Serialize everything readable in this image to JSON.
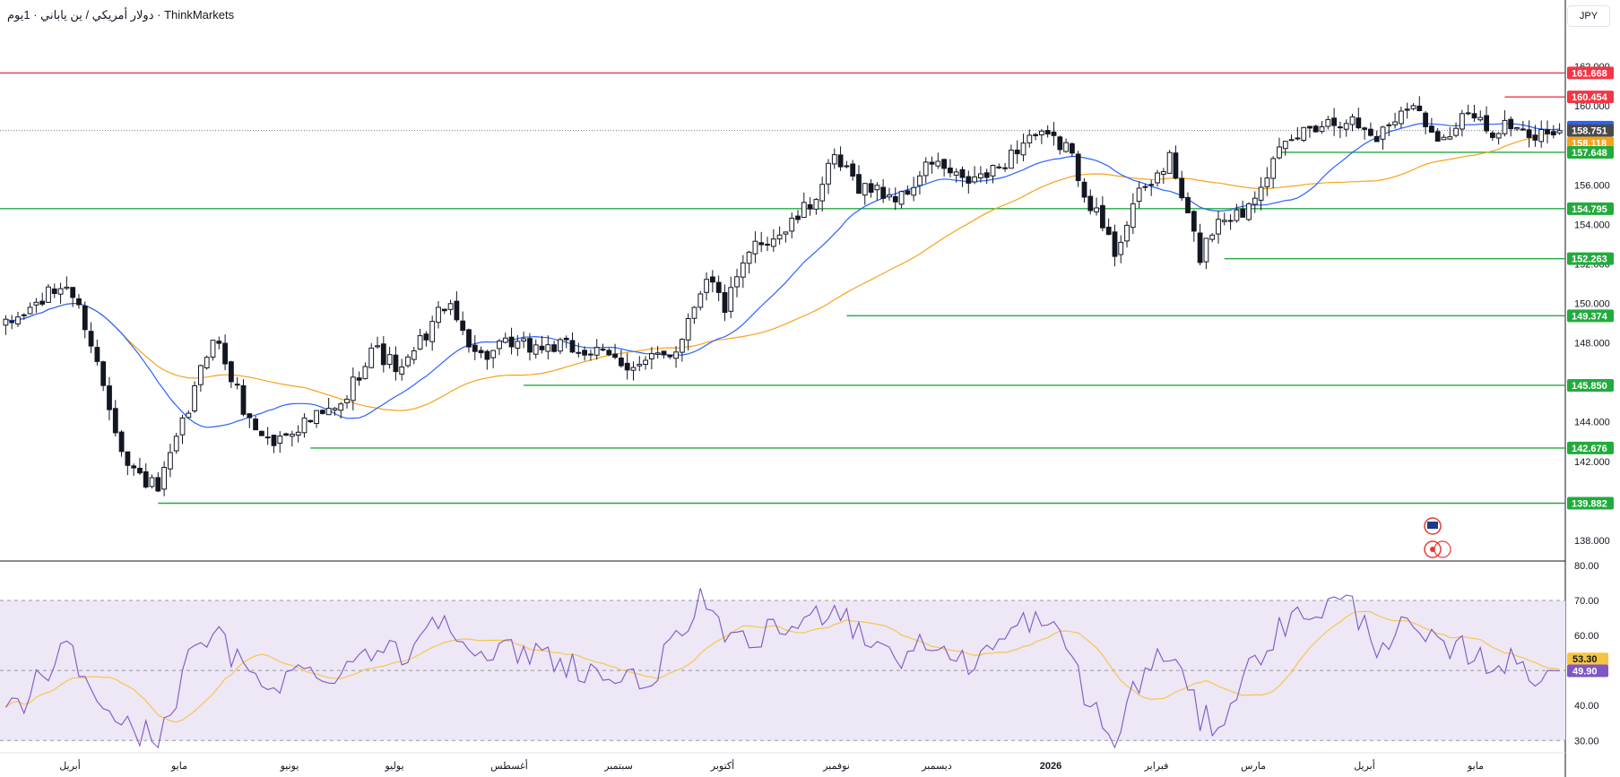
{
  "header": {
    "symbol_title": "دولار أمريكي / ين ياباني · 1يوم · ThinkMarkets",
    "currency": "JPY"
  },
  "colors": {
    "candle": "#131722",
    "ma_fast": "#2962ff",
    "ma_slow": "#f7a21b",
    "support_line": "#22ab3d",
    "resistance_line": "#f23645",
    "rsi_line": "#7e57c2",
    "rsi_ma": "#f5c542",
    "rsi_band": "#ede7f6"
  },
  "chart_data": [
    {
      "type": "candlestick",
      "pane": "price",
      "ylim": [
        137.0,
        164.0
      ],
      "x_axis_labels": [
        "أبريل",
        "مايو",
        "يونيو",
        "يوليو",
        "أغسطس",
        "سبتمبر",
        "أكتوبر",
        "نوفمبر",
        "ديسمبر",
        "2026",
        "فبراير",
        "مارس",
        "أبريل",
        "مايو"
      ],
      "y_ticks": [
        "138.000",
        "140.000",
        "142.000",
        "144.000",
        "146.000",
        "148.000",
        "150.000",
        "152.000",
        "154.000",
        "156.000",
        "158.000",
        "160.000",
        "162.000"
      ],
      "price_tags": [
        {
          "label": "161.668",
          "value": 161.668,
          "kind": "resistance"
        },
        {
          "label": "160.454",
          "value": 160.454,
          "kind": "resistance"
        },
        {
          "label": "158.926",
          "value": 158.926,
          "kind": "ma_fast"
        },
        {
          "label": "158.751",
          "value": 158.751,
          "kind": "last"
        },
        {
          "label": "158.118",
          "value": 158.118,
          "kind": "ma_slow"
        },
        {
          "label": "157.648",
          "value": 157.648,
          "kind": "support"
        },
        {
          "label": "154.795",
          "value": 154.795,
          "kind": "support"
        },
        {
          "label": "152.263",
          "value": 152.263,
          "kind": "support"
        },
        {
          "label": "149.374",
          "value": 149.374,
          "kind": "support"
        },
        {
          "label": "145.850",
          "value": 145.85,
          "kind": "support"
        },
        {
          "label": "142.676",
          "value": 142.676,
          "kind": "support"
        },
        {
          "label": "139.882",
          "value": 139.882,
          "kind": "support"
        }
      ],
      "horizontal_levels": [
        {
          "value": 161.668,
          "from_bar": 0,
          "kind": "resistance"
        },
        {
          "value": 160.454,
          "from_bar": 246,
          "kind": "resistance"
        },
        {
          "value": 157.648,
          "from_bar": 209,
          "kind": "support"
        },
        {
          "value": 154.795,
          "from_bar": 0,
          "kind": "support"
        },
        {
          "value": 152.263,
          "from_bar": 200,
          "kind": "support"
        },
        {
          "value": 149.374,
          "from_bar": 138,
          "kind": "support"
        },
        {
          "value": 145.85,
          "from_bar": 85,
          "kind": "support"
        },
        {
          "value": 142.676,
          "from_bar": 50,
          "kind": "support"
        },
        {
          "value": 139.882,
          "from_bar": 25,
          "kind": "support"
        }
      ],
      "series": [
        {
          "name": "",
          "kind": "ohlc_close_anchors",
          "x": [
            0,
            7,
            10,
            13,
            20,
            25,
            30,
            34,
            40,
            44,
            47,
            55,
            60,
            65,
            72,
            78,
            82,
            87,
            90,
            95,
            104,
            110,
            115,
            118,
            123,
            128,
            132,
            136,
            140,
            147,
            152,
            157,
            162,
            168,
            174,
            178,
            182,
            185,
            191,
            196,
            199,
            203,
            206,
            210,
            214,
            220,
            225,
            230,
            236,
            240,
            243,
            246,
            250,
            253
          ],
          "y": [
            148.8,
            150.4,
            151.0,
            149.0,
            141.8,
            140.5,
            144.6,
            148.5,
            144.0,
            142.9,
            143.7,
            144.7,
            147.8,
            146.5,
            150.0,
            147.3,
            147.8,
            147.8,
            147.8,
            147.6,
            146.8,
            147.7,
            151.5,
            149.8,
            153.0,
            153.7,
            155.0,
            157.2,
            156.0,
            155.3,
            157.2,
            156.1,
            156.6,
            158.5,
            158.0,
            155.1,
            152.6,
            155.0,
            157.3,
            152.4,
            154.4,
            154.6,
            156.3,
            157.9,
            159.0,
            159.4,
            158.4,
            160.2,
            158.3,
            159.6,
            158.7,
            159.1,
            158.3,
            158.75
          ]
        }
      ]
    },
    {
      "type": "line",
      "pane": "rsi",
      "ylim": [
        27.0,
        81.0
      ],
      "y_ticks": [
        "30.00",
        "40.00",
        "50.00",
        "60.00",
        "70.00",
        "80.00"
      ],
      "levels": [
        70,
        30
      ],
      "value_tags": [
        {
          "label": "53.30",
          "value": 53.3,
          "kind": "rsi_ma"
        },
        {
          "label": "49.90",
          "value": 49.9,
          "kind": "rsi"
        }
      ],
      "series": [
        {
          "name": "",
          "kind": "rsi_anchors",
          "x": [
            0,
            7,
            10,
            13,
            20,
            25,
            30,
            34,
            40,
            44,
            47,
            55,
            60,
            65,
            72,
            78,
            82,
            87,
            90,
            95,
            104,
            110,
            115,
            118,
            123,
            128,
            132,
            136,
            140,
            147,
            152,
            157,
            162,
            168,
            174,
            178,
            182,
            185,
            191,
            196,
            199,
            203,
            206,
            210,
            214,
            220,
            225,
            230,
            236,
            240,
            243,
            246,
            250,
            253
          ],
          "y": [
            36,
            50,
            57,
            47,
            33,
            31,
            52,
            61,
            48,
            47,
            49,
            50,
            57,
            54,
            68,
            52,
            55,
            55,
            54,
            50,
            46,
            57,
            72,
            56,
            59,
            62,
            64,
            70,
            61,
            54,
            58,
            52,
            56,
            65,
            58,
            40,
            28,
            45,
            56,
            36,
            35,
            47,
            56,
            63,
            67,
            70,
            58,
            62,
            55,
            56,
            52,
            53,
            49,
            49.9
          ]
        }
      ]
    }
  ]
}
